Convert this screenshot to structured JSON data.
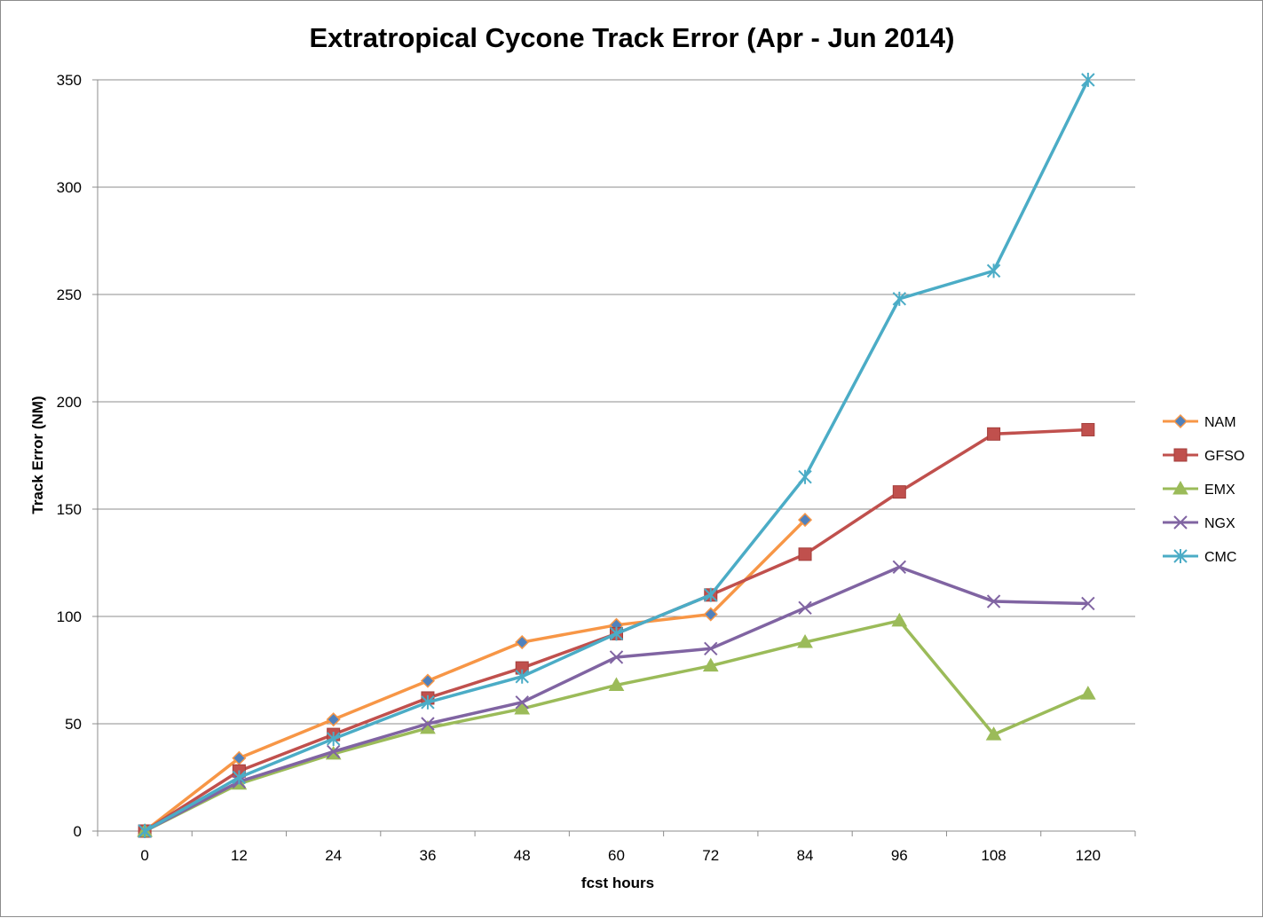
{
  "chart_data": {
    "type": "line",
    "title": "Extratropical Cycone Track Error (Apr - Jun 2014)",
    "xlabel": "fcst hours",
    "ylabel": "Track Error  (NM)",
    "categories": [
      "0",
      "12",
      "24",
      "36",
      "48",
      "60",
      "72",
      "84",
      "96",
      "108",
      "120"
    ],
    "ylim": [
      0,
      350
    ],
    "yticks": [
      0,
      50,
      100,
      150,
      200,
      250,
      300,
      350
    ],
    "grid": "horizontal",
    "legend_position": "right",
    "series": [
      {
        "name": "NAM",
        "color": "#f79646",
        "marker": "diamond",
        "marker_color": "#4f81bd",
        "values": [
          0,
          34,
          52,
          70,
          88,
          96,
          101,
          145,
          null,
          null,
          null
        ]
      },
      {
        "name": "GFSO",
        "color": "#c0504d",
        "marker": "square",
        "marker_color": "#c0504d",
        "values": [
          0,
          28,
          45,
          62,
          76,
          92,
          110,
          129,
          158,
          185,
          187
        ]
      },
      {
        "name": "EMX",
        "color": "#9bbb59",
        "marker": "triangle",
        "marker_color": "#9bbb59",
        "values": [
          0,
          22,
          36,
          48,
          57,
          68,
          77,
          88,
          98,
          45,
          64
        ]
      },
      {
        "name": "NGX",
        "color": "#8064a2",
        "marker": "x",
        "marker_color": "#8064a2",
        "values": [
          0,
          23,
          37,
          50,
          60,
          81,
          85,
          104,
          123,
          107,
          106
        ]
      },
      {
        "name": "CMC",
        "color": "#4bacc6",
        "marker": "star",
        "marker_color": "#4bacc6",
        "values": [
          0,
          25,
          43,
          60,
          72,
          92,
          110,
          165,
          248,
          261,
          350
        ]
      }
    ]
  }
}
